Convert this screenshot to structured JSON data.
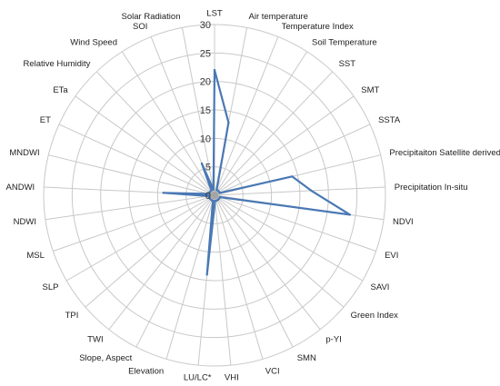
{
  "chart_data": {
    "type": "radar",
    "title": "",
    "rmax": 30,
    "ticks": [
      0,
      5,
      10,
      15,
      20,
      25,
      30
    ],
    "tick_labels": [
      "0",
      "5",
      "10",
      "15",
      "20",
      "25",
      "30"
    ],
    "grid": true,
    "legend": "none",
    "colors": {
      "series": "#4a78b4",
      "grid": "#c8c8c8",
      "marker": "#a5a5a5"
    },
    "categories": [
      "LST",
      "Air temperature",
      "Temperature Index",
      "Soil Temperature",
      "SST",
      "SMT",
      "SSTA",
      "Precipitaiton Satellite derived",
      "Precipitation In-situ",
      "NDVI",
      "EVI",
      "SAVI",
      "Green Index",
      "p-YI",
      "SMN",
      "VCI",
      "VHI",
      "LU/LC*",
      "Elevation",
      "Slope, Aspect",
      "TWI",
      "TPI",
      "SLP",
      "MSL",
      "NDWI",
      "ANDWI",
      "MNDWI",
      "ET",
      "ETa",
      "Relative Humidity",
      "Wind Speed",
      "SOI",
      "Solar Radiation"
    ],
    "series": [
      {
        "values": [
          22,
          13,
          1,
          1,
          1,
          1,
          1,
          14,
          17,
          24,
          1,
          1,
          1,
          1,
          1,
          1,
          1,
          14,
          1,
          1,
          1,
          1,
          1,
          1,
          1,
          9,
          1,
          1,
          1,
          1,
          1,
          6,
          1
        ]
      }
    ]
  }
}
